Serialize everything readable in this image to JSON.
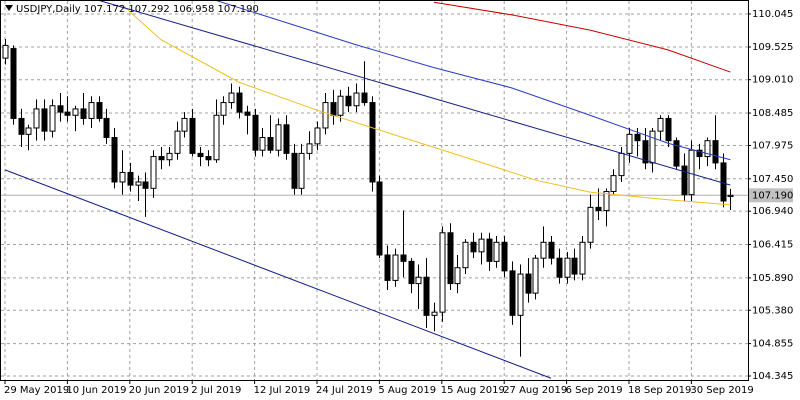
{
  "chart_data": {
    "type": "candlestick",
    "title": "USDJPY,Daily  107.172 107.292 106.958 107.190",
    "categories": [
      "29 May 2019",
      null,
      null,
      null,
      null,
      null,
      null,
      null,
      "10 Jun 2019",
      null,
      null,
      null,
      null,
      null,
      null,
      null,
      "20 Jun 2019",
      null,
      null,
      null,
      null,
      null,
      null,
      null,
      "2 Jul 2019",
      null,
      null,
      null,
      null,
      null,
      null,
      null,
      "12 Jul 2019",
      null,
      null,
      null,
      null,
      null,
      null,
      null,
      "24 Jul 2019",
      null,
      null,
      null,
      null,
      null,
      null,
      null,
      "5 Aug 2019",
      null,
      null,
      null,
      null,
      null,
      null,
      null,
      "15 Aug 2019",
      null,
      null,
      null,
      null,
      null,
      null,
      null,
      "27 Aug 2019",
      null,
      null,
      null,
      null,
      null,
      null,
      null,
      "6 Sep 2019",
      null,
      null,
      null,
      null,
      null,
      null,
      null,
      "18 Sep 2019",
      null,
      null,
      null,
      null,
      null,
      null,
      null,
      "30 Sep 2019",
      null,
      null,
      null,
      null,
      null
    ],
    "open": [
      109.35,
      109.5,
      108.4,
      108.15,
      108.25,
      108.55,
      108.2,
      108.6,
      108.5,
      108.45,
      108.55,
      108.4,
      108.65,
      108.4,
      108.1,
      107.4,
      107.55,
      107.35,
      107.4,
      107.3,
      107.8,
      107.75,
      107.85,
      108.2,
      108.4,
      107.85,
      107.8,
      107.75,
      108.45,
      108.65,
      108.8,
      108.5,
      108.45,
      107.9,
      108.1,
      107.9,
      108.3,
      107.85,
      107.3,
      107.85,
      108.0,
      108.25,
      108.65,
      108.45,
      108.75,
      108.6,
      108.8,
      108.65,
      107.4,
      106.25,
      105.85,
      106.25,
      106.15,
      105.8,
      105.9,
      105.3,
      105.35,
      106.6,
      105.8,
      106.05,
      106.45,
      106.3,
      106.5,
      106.15,
      106.45,
      106.0,
      105.3,
      105.95,
      105.65,
      106.2,
      106.45,
      106.2,
      105.9,
      106.2,
      105.95,
      106.45,
      107.0,
      106.95,
      107.25,
      107.5,
      107.85,
      108.15,
      108.05,
      107.7,
      108.2,
      108.4,
      108.05,
      107.65,
      107.2,
      107.9,
      107.8,
      108.05,
      107.7,
      107.172
    ],
    "high": [
      109.65,
      109.55,
      108.55,
      108.3,
      108.7,
      108.7,
      108.7,
      108.8,
      108.75,
      108.6,
      108.8,
      108.75,
      108.75,
      108.55,
      108.25,
      107.9,
      107.7,
      107.5,
      107.55,
      107.9,
      107.95,
      107.95,
      108.35,
      108.5,
      108.55,
      107.95,
      107.9,
      108.7,
      108.75,
      108.95,
      108.9,
      108.6,
      108.55,
      108.25,
      108.45,
      108.4,
      108.45,
      108.0,
      108.0,
      108.2,
      108.35,
      108.8,
      108.85,
      108.85,
      108.9,
      108.95,
      109.3,
      108.75,
      107.5,
      106.4,
      106.35,
      106.95,
      106.2,
      106.1,
      106.2,
      105.5,
      106.7,
      106.75,
      106.25,
      106.5,
      106.6,
      106.6,
      106.6,
      106.55,
      106.55,
      106.15,
      106.1,
      106.2,
      106.25,
      106.7,
      106.55,
      106.35,
      106.3,
      106.35,
      106.55,
      107.2,
      107.3,
      107.3,
      107.6,
      107.95,
      108.25,
      108.25,
      108.25,
      108.25,
      108.45,
      108.45,
      108.1,
      107.85,
      108.05,
      108.0,
      108.1,
      108.45,
      107.85,
      107.292
    ],
    "low": [
      109.25,
      108.3,
      107.95,
      107.9,
      108.05,
      108.05,
      108.1,
      108.35,
      108.35,
      108.2,
      108.3,
      108.25,
      108.35,
      108.0,
      107.3,
      107.2,
      107.25,
      107.1,
      106.85,
      107.15,
      107.6,
      107.65,
      107.75,
      108.1,
      107.8,
      107.65,
      107.65,
      107.7,
      108.3,
      108.55,
      108.4,
      108.15,
      107.8,
      107.8,
      107.85,
      107.8,
      107.75,
      107.2,
      107.2,
      107.75,
      107.9,
      108.15,
      108.3,
      108.35,
      108.5,
      108.5,
      108.6,
      107.25,
      106.2,
      105.7,
      105.75,
      105.9,
      105.65,
      105.4,
      105.1,
      105.05,
      105.2,
      105.7,
      105.65,
      105.95,
      106.2,
      106.1,
      106.0,
      106.05,
      105.9,
      105.15,
      104.65,
      105.5,
      105.55,
      106.05,
      106.1,
      105.8,
      105.8,
      105.85,
      105.85,
      106.35,
      106.8,
      106.7,
      107.2,
      107.4,
      107.7,
      107.8,
      107.6,
      107.55,
      108.05,
      107.95,
      107.6,
      107.1,
      107.1,
      107.6,
      107.65,
      107.6,
      107.0,
      106.958
    ],
    "close": [
      109.55,
      108.4,
      108.15,
      108.25,
      108.55,
      108.2,
      108.6,
      108.5,
      108.45,
      108.55,
      108.4,
      108.65,
      108.4,
      108.1,
      107.4,
      107.55,
      107.35,
      107.4,
      107.3,
      107.8,
      107.75,
      107.85,
      108.2,
      108.4,
      107.85,
      107.8,
      107.75,
      108.45,
      108.65,
      108.8,
      108.5,
      108.45,
      107.9,
      108.1,
      107.9,
      108.3,
      107.85,
      107.3,
      107.85,
      108.0,
      108.25,
      108.65,
      108.45,
      108.75,
      108.6,
      108.8,
      108.65,
      107.4,
      106.25,
      105.85,
      106.25,
      106.15,
      105.8,
      105.9,
      105.3,
      105.35,
      106.6,
      105.8,
      106.05,
      106.45,
      106.3,
      106.5,
      106.15,
      106.45,
      106.0,
      105.3,
      105.95,
      105.65,
      106.2,
      106.45,
      106.2,
      105.9,
      106.2,
      105.95,
      106.45,
      107.0,
      106.95,
      107.25,
      107.5,
      107.85,
      108.15,
      108.05,
      107.7,
      108.2,
      108.4,
      108.05,
      107.65,
      107.2,
      107.9,
      107.8,
      108.05,
      107.7,
      107.1,
      107.19
    ],
    "lines": [
      {
        "color": "#cc0000",
        "x": [
          55,
          65,
          75,
          85,
          93
        ],
        "values": [
          110.23,
          110.03,
          109.79,
          109.48,
          109.13
        ]
      },
      {
        "color": "#2a3cc8",
        "x": [
          27,
          35,
          45,
          55,
          65,
          75,
          85,
          93
        ],
        "values": [
          110.26,
          109.95,
          109.56,
          109.2,
          108.88,
          108.45,
          108.01,
          107.75
        ]
      },
      {
        "color": "#f0c020",
        "x": [
          15,
          20,
          30,
          40,
          50,
          60,
          68,
          75,
          85,
          93
        ],
        "values": [
          110.19,
          109.64,
          108.97,
          108.53,
          108.14,
          107.75,
          107.43,
          107.24,
          107.12,
          107.04
        ]
      },
      {
        "color": "#10208a",
        "x": [
          12,
          93
        ],
        "values": [
          110.26,
          107.35
        ]
      },
      {
        "color": "#10208a",
        "x": [
          0,
          70
        ],
        "values": [
          107.59,
          104.31
        ]
      }
    ],
    "ylim": [
      104.282,
      110.265
    ],
    "yticks": [
      110.045,
      109.525,
      {
        "value": 109.01,
        "label": "109.010"
      },
      108.485,
      107.975,
      {
        "value": 107.45,
        "label": "107.450"
      },
      {
        "value": 106.94,
        "label": "106.940"
      },
      106.415,
      {
        "value": 105.89,
        "label": "105.890"
      },
      {
        "value": 105.38,
        "label": "105.380"
      },
      104.855,
      104.345
    ],
    "current_price": {
      "value": 107.19,
      "label": "107.190"
    },
    "grid": true,
    "bull_color": "#ffffff",
    "bear_color": "#000000"
  }
}
